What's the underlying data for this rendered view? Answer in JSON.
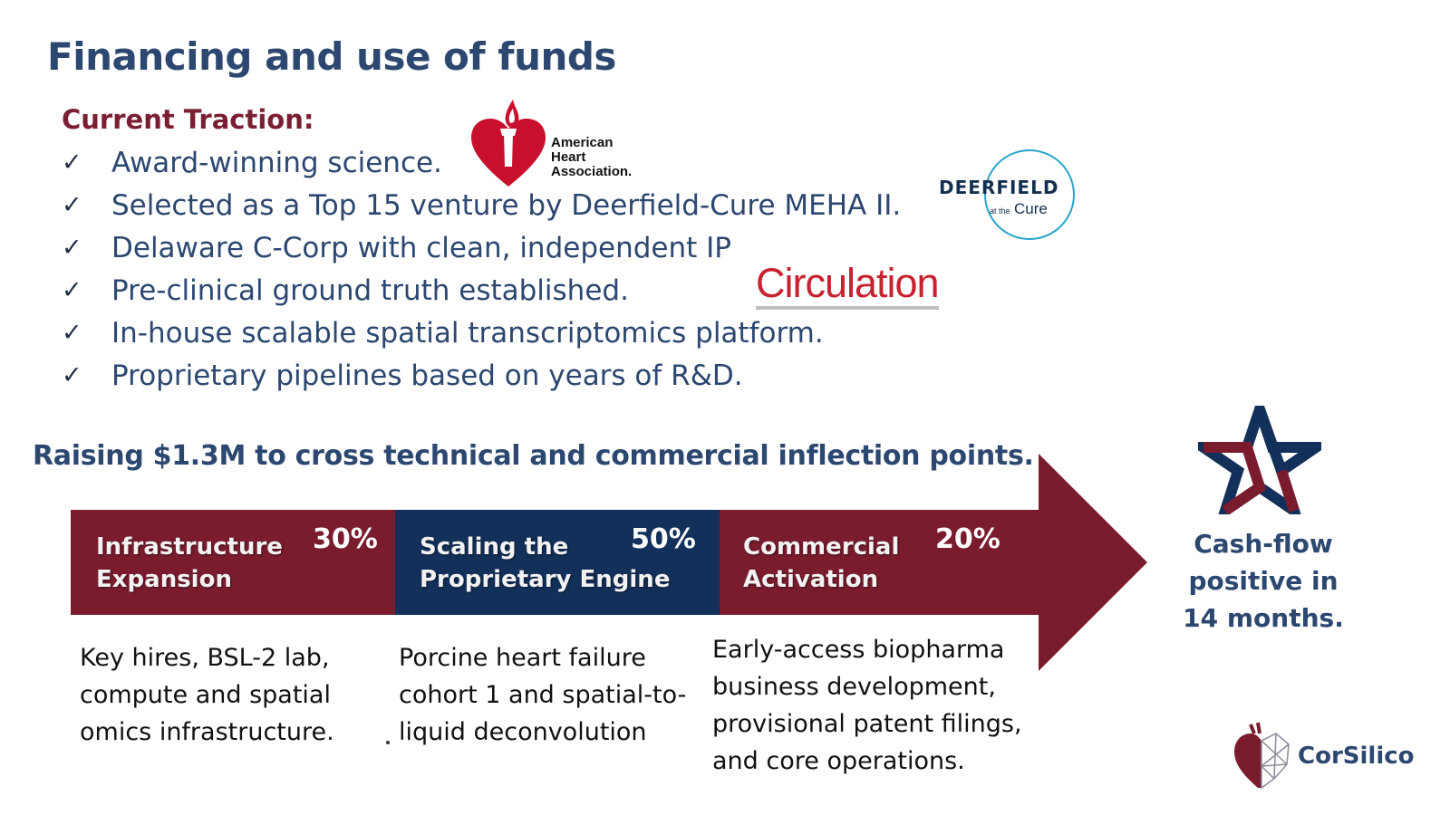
{
  "title": "Financing and use of funds",
  "traction": {
    "heading": "Current Traction:",
    "check_glyph": "✓",
    "items": [
      "Award-winning science.",
      "Selected as a Top 15 venture by Deerfield-Cure MEHA II.",
      "Delaware C-Corp with clean, independent IP",
      "Pre-clinical ground truth established.",
      "In-house scalable spatial transcriptomics platform.",
      "Proprietary pipelines based on years of R&D."
    ]
  },
  "logos": {
    "aha": {
      "line1": "American",
      "line2": "Heart",
      "line3": "Association."
    },
    "deerfield": {
      "name": "DEERFIELD",
      "sub_small": "at the",
      "sub_main": "Cure"
    },
    "circulation": "Circulation",
    "corsilico": "CorSilico"
  },
  "raising": "Raising $1.3M to cross technical and commercial inflection points.",
  "phases": [
    {
      "label_line1": "Infrastructure",
      "label_line2": "Expansion",
      "percent": "30%",
      "share": 0.3,
      "color": "#7a1c2e",
      "desc": [
        "Key hires, BSL-2 lab,",
        "compute and spatial",
        "omics infrastructure."
      ]
    },
    {
      "label_line1": "Scaling the",
      "label_line2": "Proprietary Engine",
      "percent": "50%",
      "share": 0.5,
      "color": "#13305a",
      "desc": [
        "Porcine heart failure",
        "cohort 1 and spatial-to-",
        "liquid deconvolution"
      ]
    },
    {
      "label_line1": "Commercial",
      "label_line2": "Activation",
      "percent": "20%",
      "share": 0.2,
      "color": "#7a1c2e",
      "desc": [
        "Early-access biopharma",
        "business development,",
        "provisional patent filings,",
        "and core operations."
      ]
    }
  ],
  "cashflow": {
    "line1": "Cash-flow",
    "line2": "positive in",
    "line3": "14 months."
  },
  "colors": {
    "navy": "#2c4770",
    "maroon": "#7a1c2e",
    "deep_navy": "#13305a",
    "traction_heading": "#7a1f33",
    "circulation_red": "#c8212f"
  }
}
